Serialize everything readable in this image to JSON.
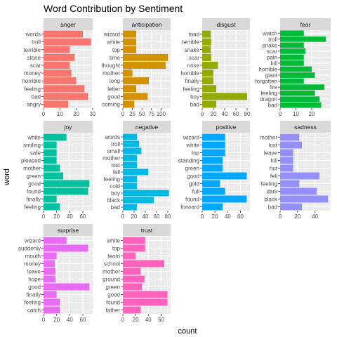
{
  "chart_data": {
    "type": "bar",
    "title": "Word Contribution by Sentiment",
    "xlabel": "count",
    "ylabel": "word",
    "grid": true,
    "legend": "none",
    "orientation": "horizontal",
    "panels": [
      {
        "name": "anger",
        "color": "#F8766D",
        "xlim": [
          0,
          30
        ],
        "xticks": [
          0,
          10,
          20,
          30
        ],
        "categories": [
          "words",
          "troll",
          "terrible",
          "stone",
          "scar",
          "money",
          "horrible",
          "feeling",
          "bad",
          "angry"
        ],
        "values": [
          24,
          29,
          16,
          19,
          16,
          17,
          20,
          25,
          27,
          15
        ]
      },
      {
        "name": "anticipation",
        "color": "#D39200",
        "xlim": [
          0,
          125
        ],
        "xticks": [
          0,
          25,
          50,
          75,
          100
        ],
        "xtick_labels": [
          "0",
          "25",
          "50",
          "75",
          "100"
        ],
        "categories": [
          "wizard",
          "white",
          "top",
          "time",
          "thought",
          "mother",
          "long",
          "letter",
          "good",
          "coming"
        ],
        "values": [
          35,
          35,
          35,
          118,
          112,
          25,
          68,
          35,
          65,
          30
        ]
      },
      {
        "name": "disgust",
        "color": "#93AA00",
        "xlim": [
          0,
          85
        ],
        "xticks": [
          0,
          20,
          40,
          60,
          80
        ],
        "categories": [
          "toad",
          "terrible",
          "snake",
          "scar",
          "nose",
          "horrible",
          "finally",
          "feeling",
          "boy",
          "bad"
        ],
        "values": [
          15,
          16,
          15,
          16,
          28,
          20,
          20,
          25,
          80,
          25
        ]
      },
      {
        "name": "fear",
        "color": "#00BA38",
        "xlim": [
          0,
          32
        ],
        "xticks": [
          0,
          10,
          20
        ],
        "categories": [
          "watch",
          "troll",
          "snake",
          "scar",
          "pain",
          "kill",
          "horrible",
          "giant",
          "forgotten",
          "fire",
          "feeling",
          "dragon",
          "bad"
        ],
        "values": [
          15,
          29,
          15,
          16,
          15,
          15,
          20,
          22,
          15,
          28,
          22,
          25,
          26
        ]
      },
      {
        "name": "joy",
        "color": "#00C19F",
        "xlim": [
          0,
          75
        ],
        "xticks": [
          0,
          20,
          40,
          60
        ],
        "categories": [
          "white",
          "smiling",
          "safe",
          "pleased",
          "mother",
          "green",
          "good",
          "found",
          "finally",
          "feeling"
        ],
        "values": [
          35,
          20,
          20,
          20,
          25,
          30,
          70,
          68,
          20,
          25
        ]
      },
      {
        "name": "negative",
        "color": "#00B9E3",
        "xlim": [
          0,
          85
        ],
        "xticks": [
          0,
          20,
          40,
          60,
          80
        ],
        "categories": [
          "words",
          "troll",
          "small",
          "mother",
          "lost",
          "fell",
          "feeling",
          "cold",
          "boy",
          "black",
          "bad"
        ],
        "values": [
          25,
          29,
          33,
          25,
          25,
          45,
          25,
          25,
          82,
          55,
          25
        ]
      },
      {
        "name": "positive",
        "color": "#00A9FF",
        "xlim": [
          0,
          75
        ],
        "xticks": [
          0,
          20,
          40,
          60
        ],
        "categories": [
          "wizard",
          "white",
          "top",
          "standing",
          "green",
          "good",
          "gold",
          "full",
          "found",
          "forward"
        ],
        "values": [
          36,
          36,
          36,
          32,
          32,
          70,
          28,
          36,
          70,
          32
        ]
      },
      {
        "name": "sadness",
        "color": "#9590FF",
        "xlim": [
          0,
          58
        ],
        "xticks": [
          0,
          20,
          40
        ],
        "categories": [
          "mother",
          "lost",
          "leave",
          "kill",
          "hut",
          "fell",
          "feeling",
          "dark",
          "black",
          "bad"
        ],
        "values": [
          22,
          25,
          15,
          15,
          15,
          45,
          22,
          42,
          55,
          25
        ]
      },
      {
        "name": "surprise",
        "color": "#E76BF3",
        "xlim": [
          0,
          75
        ],
        "xticks": [
          0,
          20,
          40,
          60
        ],
        "categories": [
          "wizard",
          "suddenly",
          "mouth",
          "money",
          "leave",
          "hope",
          "good",
          "finally",
          "feeling",
          "catch"
        ],
        "values": [
          35,
          68,
          20,
          17,
          18,
          18,
          70,
          20,
          25,
          25
        ]
      },
      {
        "name": "trust",
        "color": "#FF62BC",
        "xlim": [
          0,
          75
        ],
        "xticks": [
          0,
          20,
          40,
          60
        ],
        "categories": [
          "white",
          "top",
          "team",
          "school",
          "mother",
          "ground",
          "green",
          "good",
          "found",
          "father"
        ],
        "values": [
          35,
          35,
          20,
          65,
          28,
          34,
          30,
          70,
          70,
          28
        ]
      }
    ]
  }
}
